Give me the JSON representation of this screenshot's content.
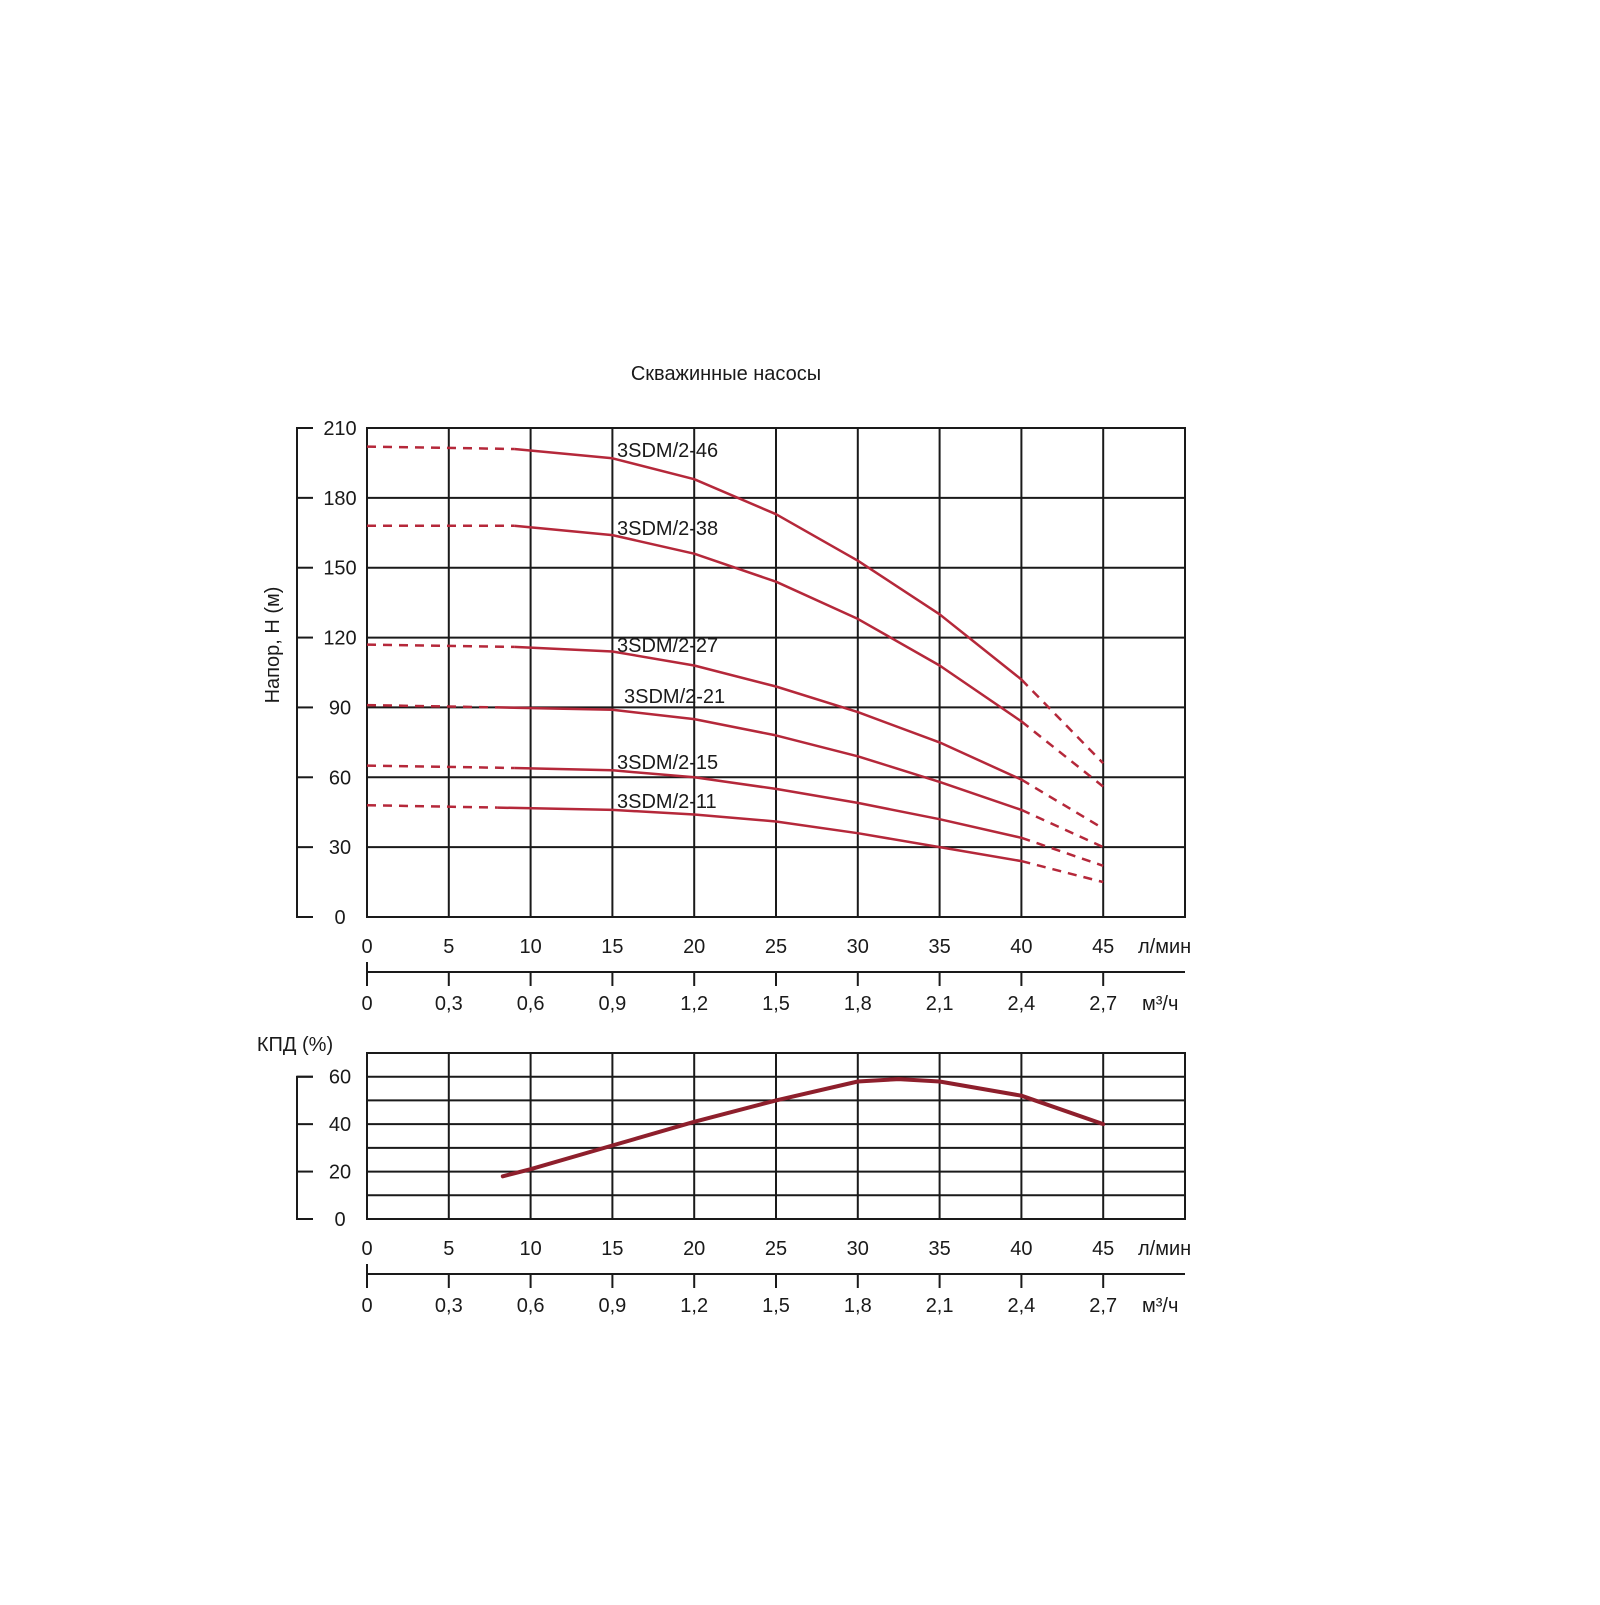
{
  "chart_data": [
    {
      "type": "line",
      "title": "Скважинные насосы",
      "ylabel": "Напор, H (м)",
      "ylim": [
        0,
        210
      ],
      "yticks": [
        "0",
        "30",
        "60",
        "90",
        "120",
        "150",
        "180",
        "210"
      ],
      "xlim": [
        0,
        50
      ],
      "xticks_primary": [
        "0",
        "5",
        "10",
        "15",
        "20",
        "25",
        "30",
        "35",
        "40",
        "45"
      ],
      "xunit_primary": "л/мин",
      "xticks_secondary": [
        "0",
        "0,3",
        "0,6",
        "0,9",
        "1,2",
        "1,5",
        "1,8",
        "2,1",
        "2,4",
        "2,7"
      ],
      "xunit_secondary": "м³/ч",
      "grid": true,
      "highlight_line_y": 60,
      "line_color": "#b5283a",
      "series": [
        {
          "name": "3SDM/2-46",
          "dashed": [
            [
              0,
              202
            ],
            [
              9,
              201
            ]
          ],
          "x": [
            9,
            15,
            20,
            25,
            30,
            35,
            40
          ],
          "y": [
            201,
            197,
            188,
            173,
            153,
            130,
            102
          ],
          "dashed_end": [
            [
              40,
              102
            ],
            [
              45,
              66
            ]
          ]
        },
        {
          "name": "3SDM/2-38",
          "dashed": [
            [
              0,
              168
            ],
            [
              9,
              168
            ]
          ],
          "x": [
            9,
            15,
            20,
            25,
            30,
            35,
            40
          ],
          "y": [
            168,
            164,
            156,
            144,
            128,
            108,
            84
          ],
          "dashed_end": [
            [
              40,
              84
            ],
            [
              45,
              56
            ]
          ]
        },
        {
          "name": "3SDM/2-27",
          "dashed": [
            [
              0,
              117
            ],
            [
              9,
              116
            ]
          ],
          "x": [
            9,
            15,
            20,
            25,
            30,
            35,
            40
          ],
          "y": [
            116,
            114,
            108,
            99,
            88,
            75,
            59
          ],
          "dashed_end": [
            [
              40,
              59
            ],
            [
              45,
              38
            ]
          ]
        },
        {
          "name": "3SDM/2-21",
          "dashed": [
            [
              0,
              91
            ],
            [
              8,
              90
            ]
          ],
          "x": [
            8,
            15,
            20,
            25,
            30,
            35,
            40
          ],
          "y": [
            90,
            89,
            85,
            78,
            69,
            58,
            46
          ],
          "dashed_end": [
            [
              40,
              46
            ],
            [
              45,
              30
            ]
          ]
        },
        {
          "name": "3SDM/2-15",
          "dashed": [
            [
              0,
              65
            ],
            [
              9,
              64
            ]
          ],
          "x": [
            9,
            15,
            20,
            25,
            30,
            35,
            40
          ],
          "y": [
            64,
            63,
            60,
            55,
            49,
            42,
            34
          ],
          "dashed_end": [
            [
              40,
              34
            ],
            [
              45,
              22
            ]
          ]
        },
        {
          "name": "3SDM/2-11",
          "dashed": [
            [
              0,
              48
            ],
            [
              8,
              47
            ]
          ],
          "x": [
            8,
            15,
            20,
            25,
            30,
            35,
            40
          ],
          "y": [
            47,
            46,
            44,
            41,
            36,
            30,
            24
          ],
          "dashed_end": [
            [
              40,
              24
            ],
            [
              45,
              15
            ]
          ]
        }
      ]
    },
    {
      "type": "line",
      "ylabel": "КПД  (%)",
      "ylim": [
        0,
        70
      ],
      "yticks": [
        "0",
        "20",
        "40",
        "60"
      ],
      "xlim": [
        0,
        50
      ],
      "xticks_primary": [
        "0",
        "5",
        "10",
        "15",
        "20",
        "25",
        "30",
        "35",
        "40",
        "45"
      ],
      "xunit_primary": "л/мин",
      "xticks_secondary": [
        "0",
        "0,3",
        "0,6",
        "0,9",
        "1,2",
        "1,5",
        "1,8",
        "2,1",
        "2,4",
        "2,7"
      ],
      "xunit_secondary": "м³/ч",
      "grid": true,
      "line_color": "#8e1f2c",
      "series": [
        {
          "x": [
            8.3,
            10,
            15,
            20,
            25,
            30,
            32.5,
            35,
            40,
            45
          ],
          "y": [
            18,
            21,
            31,
            41,
            50,
            58,
            59,
            58,
            52,
            40
          ]
        }
      ]
    }
  ]
}
